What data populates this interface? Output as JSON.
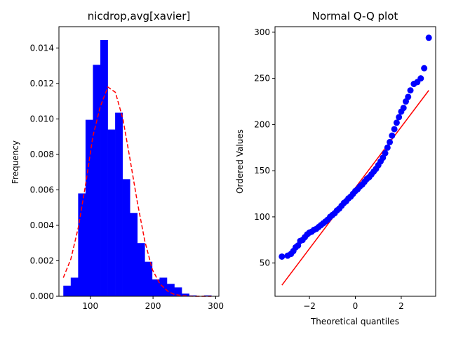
{
  "chart_data": [
    {
      "type": "bar",
      "title": "nicdrop,avg[xavier]",
      "xlabel": "",
      "ylabel": "Frequency",
      "xlim": [
        50,
        305
      ],
      "ylim": [
        0,
        0.0152
      ],
      "xticks": [
        100,
        200,
        300
      ],
      "yticks": [
        0.0,
        0.002,
        0.004,
        0.006,
        0.008,
        0.01,
        0.012,
        0.014
      ],
      "ytick_labels": [
        "0.000",
        "0.002",
        "0.004",
        "0.006",
        "0.008",
        "0.010",
        "0.012",
        "0.014"
      ],
      "bin_width": 11.8,
      "bin_starts": [
        57.0,
        68.8,
        80.6,
        92.4,
        104.2,
        116.0,
        127.8,
        139.6,
        151.4,
        163.2,
        175.0,
        186.8,
        198.6,
        210.4,
        222.2,
        234.0,
        245.8,
        257.6,
        269.4,
        281.2
      ],
      "values": [
        0.0006,
        0.00105,
        0.0058,
        0.00995,
        0.01305,
        0.01445,
        0.0094,
        0.01035,
        0.0066,
        0.0047,
        0.003,
        0.00195,
        0.00095,
        0.00105,
        0.0007,
        0.0005,
        0.00015,
        5e-05,
        0.0,
        5e-05
      ],
      "bar_color": "#0000ff",
      "fit_curve": {
        "color": "#ff0000",
        "style": "dashed",
        "x": [
          57,
          69,
          81,
          93,
          104,
          116,
          128,
          140,
          152,
          163,
          175,
          187,
          199,
          211,
          223,
          234,
          246,
          258,
          270,
          281,
          293
        ],
        "y": [
          0.00105,
          0.0021,
          0.0039,
          0.0064,
          0.009,
          0.0107,
          0.0118,
          0.0115,
          0.01,
          0.0078,
          0.0053,
          0.0031,
          0.0015,
          0.0007,
          0.0003,
          0.0001,
          4e-05,
          1e-05,
          0.0,
          0.0,
          0.0
        ]
      }
    },
    {
      "type": "scatter",
      "title": "Normal Q-Q plot",
      "xlabel": "Theoretical quantiles",
      "ylabel": "Ordered Values",
      "xlim": [
        -3.5,
        3.5
      ],
      "ylim": [
        14,
        306
      ],
      "xticks": [
        -2,
        0,
        2
      ],
      "yticks": [
        50,
        100,
        150,
        200,
        250,
        300
      ],
      "point_color": "#0000ff",
      "line_color": "#ff0000",
      "fit_line": {
        "x": [
          -3.2,
          3.2
        ],
        "y": [
          26,
          237
        ]
      },
      "points": {
        "x": [
          -3.2,
          -2.95,
          -2.8,
          -2.7,
          -2.6,
          -2.5,
          -2.4,
          -2.3,
          -2.2,
          -2.1,
          -2.0,
          -1.9,
          -1.8,
          -1.7,
          -1.6,
          -1.5,
          -1.4,
          -1.3,
          -1.2,
          -1.1,
          -1.0,
          -0.9,
          -0.8,
          -0.7,
          -0.6,
          -0.5,
          -0.4,
          -0.3,
          -0.2,
          -0.1,
          0.0,
          0.1,
          0.2,
          0.3,
          0.4,
          0.5,
          0.6,
          0.7,
          0.8,
          0.9,
          1.0,
          1.1,
          1.2,
          1.3,
          1.4,
          1.5,
          1.6,
          1.7,
          1.8,
          1.9,
          2.0,
          2.1,
          2.2,
          2.3,
          2.4,
          2.55,
          2.7,
          2.85,
          3.0,
          3.2
        ],
        "y": [
          57,
          58,
          60,
          63,
          67,
          69,
          74,
          75,
          78,
          81,
          83,
          84,
          86,
          87,
          89,
          91,
          93,
          95,
          97,
          100,
          102,
          104,
          107,
          109,
          112,
          115,
          117,
          120,
          122,
          125,
          128,
          130,
          133,
          135,
          138,
          141,
          143,
          146,
          149,
          152,
          156,
          160,
          164,
          169,
          175,
          181,
          188,
          195,
          202,
          208,
          214,
          218,
          225,
          230,
          237,
          244,
          246,
          250,
          261,
          294
        ]
      }
    }
  ]
}
